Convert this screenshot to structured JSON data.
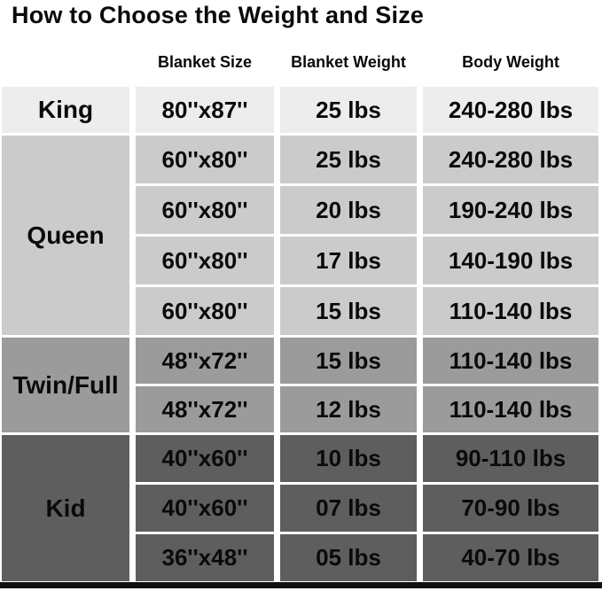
{
  "title": "How to Choose the Weight and Size",
  "colors": {
    "background": "#ffffff",
    "text": "#0a0a0a",
    "king_shade": "#ededed",
    "queen_shade": "#cbcbcb",
    "twin_full_shade": "#9b9b9b",
    "kid_shade": "#5e5e5e",
    "bottom_bar": "#101010"
  },
  "chart_data": {
    "type": "table",
    "title": "How to Choose the Weight and Size",
    "columns": [
      "",
      "Blanket Size",
      "Blanket Weight",
      "Body Weight"
    ],
    "row_groups": [
      {
        "category": "King",
        "shade": "#ededed",
        "rows": [
          [
            "80''x87''",
            "25 lbs",
            "240-280 lbs"
          ]
        ]
      },
      {
        "category": "Queen",
        "shade": "#cbcbcb",
        "rows": [
          [
            "60''x80''",
            "25 lbs",
            "240-280 lbs"
          ],
          [
            "60''x80''",
            "20 lbs",
            "190-240 lbs"
          ],
          [
            "60''x80''",
            "17 lbs",
            "140-190 lbs"
          ],
          [
            "60''x80''",
            "15 lbs",
            "110-140 lbs"
          ]
        ]
      },
      {
        "category": "Twin/Full",
        "shade": "#9b9b9b",
        "rows": [
          [
            "48''x72''",
            "15 lbs",
            "110-140 lbs"
          ],
          [
            "48''x72''",
            "12 lbs",
            "110-140 lbs"
          ]
        ]
      },
      {
        "category": "Kid",
        "shade": "#5e5e5e",
        "rows": [
          [
            "40''x60''",
            "10 lbs",
            "90-110 lbs"
          ],
          [
            "40''x60''",
            "07 lbs",
            "70-90 lbs"
          ],
          [
            "36''x48''",
            "05 lbs",
            "40-70 lbs"
          ]
        ]
      }
    ]
  }
}
